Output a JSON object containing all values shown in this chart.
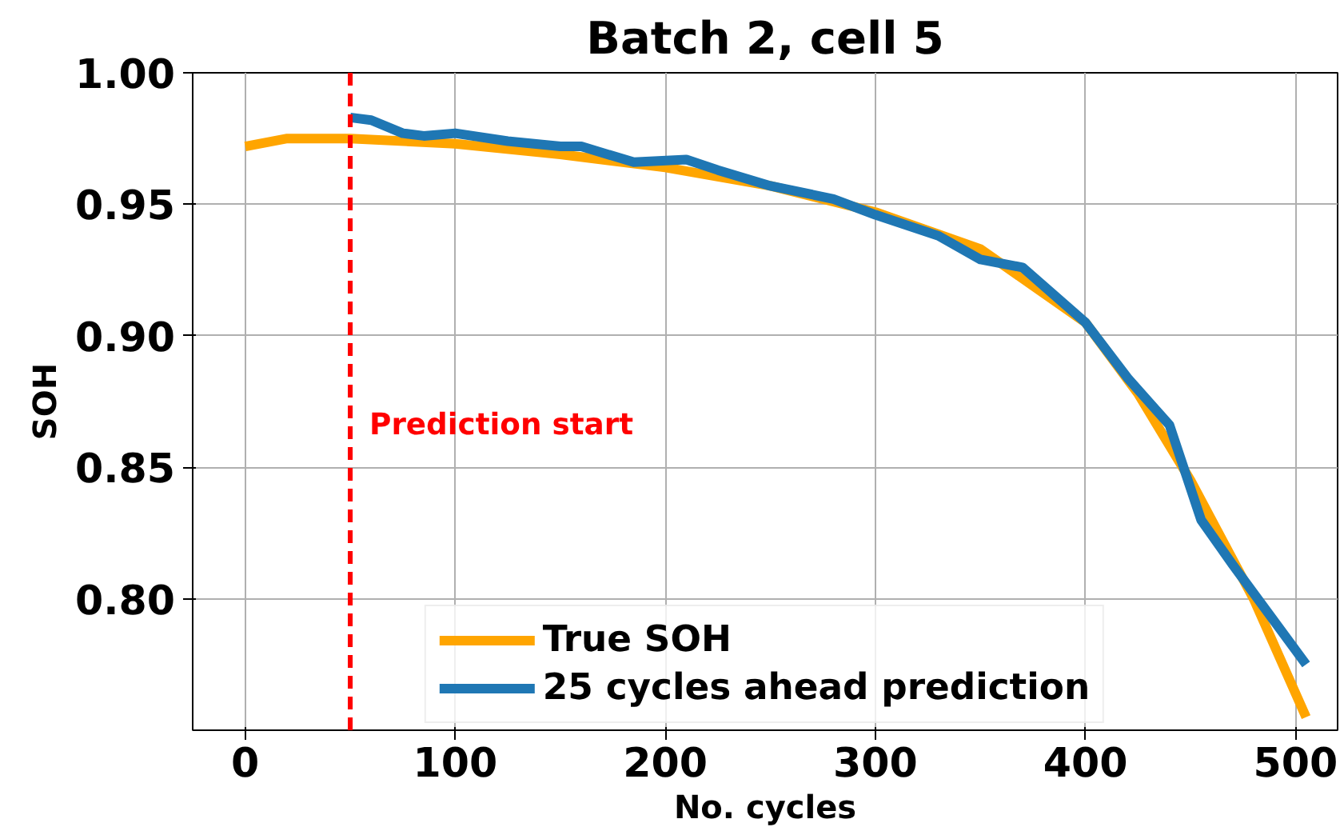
{
  "chart_data": {
    "type": "line",
    "title": "Batch 2, cell 5",
    "xlabel": "No. cycles",
    "ylabel": "SOH",
    "xlim": [
      -25,
      520
    ],
    "ylim": [
      0.75,
      1.0
    ],
    "xticks": [
      0,
      100,
      200,
      300,
      400,
      500
    ],
    "yticks": [
      {
        "value": 0.8,
        "label": "0.80"
      },
      {
        "value": 0.85,
        "label": "0.85"
      },
      {
        "value": 0.9,
        "label": "0.90"
      },
      {
        "value": 0.95,
        "label": "0.95"
      },
      {
        "value": 1.0,
        "label": "1.00"
      }
    ],
    "grid": true,
    "legend": "bottom",
    "line_style": "solid",
    "marker": "none",
    "series": [
      {
        "name": "True SOH",
        "color": "#ffa500",
        "x": [
          0,
          20,
          50,
          100,
          150,
          200,
          250,
          300,
          350,
          400,
          425,
          450,
          480,
          505
        ],
        "values": [
          0.972,
          0.975,
          0.975,
          0.973,
          0.969,
          0.964,
          0.957,
          0.947,
          0.933,
          0.905,
          0.878,
          0.845,
          0.8,
          0.755
        ]
      },
      {
        "name": "25 cycles ahead prediction",
        "color": "#1f77b4",
        "x": [
          50,
          60,
          75,
          85,
          100,
          125,
          150,
          160,
          185,
          210,
          225,
          250,
          280,
          300,
          330,
          350,
          370,
          400,
          420,
          440,
          455,
          470,
          505
        ],
        "values": [
          0.983,
          0.982,
          0.977,
          0.976,
          0.977,
          0.974,
          0.972,
          0.972,
          0.966,
          0.967,
          0.963,
          0.957,
          0.952,
          0.946,
          0.938,
          0.929,
          0.926,
          0.905,
          0.884,
          0.866,
          0.83,
          0.813,
          0.775
        ]
      }
    ],
    "ref_lines": [
      {
        "axis": "x",
        "value": 50,
        "color": "#ff0000",
        "line_style": "dashed"
      }
    ],
    "annotations": [
      "Prediction start"
    ]
  }
}
